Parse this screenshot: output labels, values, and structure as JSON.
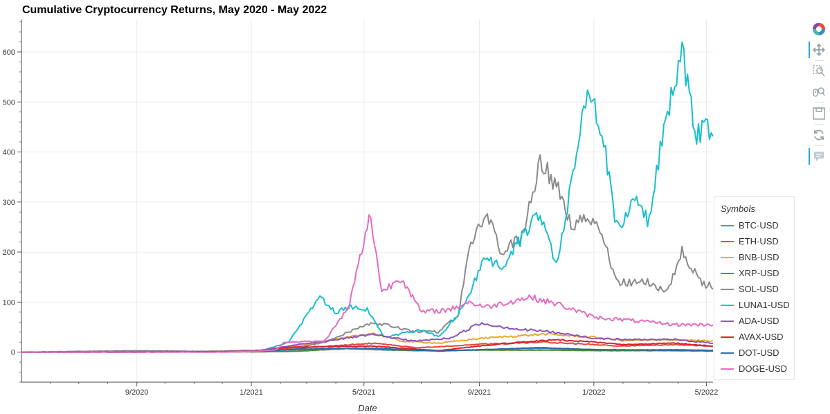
{
  "title": "Cumulative Cryptocurrency Returns, May 2020 - May 2022",
  "toolbar": {
    "tools": [
      {
        "name": "bokeh-logo-icon",
        "active": false
      },
      {
        "name": "pan-icon",
        "active": true
      },
      {
        "name": "box-zoom-icon",
        "active": false
      },
      {
        "name": "wheel-zoom-icon",
        "active": false
      },
      {
        "name": "save-icon",
        "active": false
      },
      {
        "name": "reset-icon",
        "active": false
      },
      {
        "name": "hover-icon",
        "active": true
      }
    ]
  },
  "chart_data": {
    "type": "line",
    "title": "Cumulative Cryptocurrency Returns, May 2020 - May 2022",
    "xlabel": "Date",
    "ylabel": "",
    "xlim": [
      "2020-05-01",
      "2022-05-08"
    ],
    "ylim": [
      -60,
      665
    ],
    "x_ticks": [
      {
        "date": "2020-09-01",
        "label": "9/2020"
      },
      {
        "date": "2021-01-01",
        "label": "1/2021"
      },
      {
        "date": "2021-05-01",
        "label": "5/2021"
      },
      {
        "date": "2021-09-01",
        "label": "9/2021"
      },
      {
        "date": "2022-01-01",
        "label": "1/2022"
      },
      {
        "date": "2022-05-01",
        "label": "5/2022"
      }
    ],
    "y_ticks": [
      0,
      100,
      200,
      300,
      400,
      500,
      600
    ],
    "legend_title": "Symbols",
    "legend_position": "right",
    "grid": true,
    "series": [
      {
        "name": "BTC-USD",
        "color": "#1f77b4",
        "points": [
          [
            "2020-05-01",
            0
          ],
          [
            "2020-09-01",
            0.2
          ],
          [
            "2020-12-01",
            1
          ],
          [
            "2021-01-10",
            3
          ],
          [
            "2021-02-20",
            5
          ],
          [
            "2021-04-14",
            7
          ],
          [
            "2021-05-25",
            4
          ],
          [
            "2021-07-20",
            3
          ],
          [
            "2021-09-05",
            5
          ],
          [
            "2021-10-20",
            7
          ],
          [
            "2021-11-10",
            7.5
          ],
          [
            "2022-01-01",
            5
          ],
          [
            "2022-02-01",
            4
          ],
          [
            "2022-03-28",
            5
          ],
          [
            "2022-05-08",
            3.5
          ]
        ]
      },
      {
        "name": "ETH-USD",
        "color": "#ff7f0e",
        "points": [
          [
            "2020-05-01",
            0
          ],
          [
            "2020-09-01",
            1
          ],
          [
            "2020-12-01",
            2
          ],
          [
            "2021-01-10",
            4
          ],
          [
            "2021-02-20",
            8
          ],
          [
            "2021-05-12",
            18
          ],
          [
            "2021-06-25",
            9
          ],
          [
            "2021-08-01",
            12
          ],
          [
            "2021-09-05",
            16
          ],
          [
            "2021-11-10",
            20
          ],
          [
            "2022-01-01",
            15
          ],
          [
            "2022-02-01",
            12
          ],
          [
            "2022-03-28",
            15
          ],
          [
            "2022-05-08",
            12
          ]
        ]
      },
      {
        "name": "BNB-USD",
        "color": "#2ca02c",
        "points": [
          [
            "2020-05-01",
            0
          ],
          [
            "2020-09-01",
            0.5
          ],
          [
            "2020-12-01",
            1
          ],
          [
            "2021-01-10",
            2
          ],
          [
            "2021-02-20",
            12
          ],
          [
            "2021-05-10",
            38
          ],
          [
            "2021-06-10",
            22
          ],
          [
            "2021-07-20",
            18
          ],
          [
            "2021-09-05",
            28
          ],
          [
            "2021-11-10",
            36
          ],
          [
            "2022-01-01",
            30
          ],
          [
            "2022-02-01",
            23
          ],
          [
            "2022-03-28",
            25
          ],
          [
            "2022-05-08",
            22
          ]
        ]
      },
      {
        "name": "XRP-USD",
        "color": "#d62728",
        "points": [
          [
            "2020-05-01",
            0
          ],
          [
            "2020-09-01",
            0.5
          ],
          [
            "2020-12-01",
            1
          ],
          [
            "2021-01-10",
            0.5
          ],
          [
            "2021-02-20",
            2
          ],
          [
            "2021-04-14",
            7
          ],
          [
            "2021-06-25",
            3
          ],
          [
            "2021-09-05",
            4
          ],
          [
            "2021-11-10",
            4
          ],
          [
            "2022-01-01",
            3
          ],
          [
            "2022-03-28",
            3
          ],
          [
            "2022-05-08",
            2
          ]
        ]
      },
      {
        "name": "SOL-USD",
        "color": "#9467bd",
        "points": [
          [
            "2020-05-01",
            0
          ],
          [
            "2020-09-01",
            3
          ],
          [
            "2020-12-01",
            1
          ],
          [
            "2021-01-10",
            2
          ],
          [
            "2021-02-10",
            5
          ],
          [
            "2021-03-20",
            20
          ],
          [
            "2021-05-10",
            60
          ],
          [
            "2021-06-20",
            42
          ],
          [
            "2021-07-20",
            40
          ],
          [
            "2021-08-10",
            75
          ],
          [
            "2021-08-20",
            200
          ],
          [
            "2021-09-08",
            280
          ],
          [
            "2021-09-25",
            200
          ],
          [
            "2021-10-15",
            225
          ],
          [
            "2021-11-05",
            385
          ],
          [
            "2021-11-25",
            320
          ],
          [
            "2021-12-10",
            250
          ],
          [
            "2021-12-25",
            275
          ],
          [
            "2022-01-10",
            230
          ],
          [
            "2022-01-25",
            140
          ],
          [
            "2022-03-01",
            140
          ],
          [
            "2022-03-20",
            120
          ],
          [
            "2022-04-05",
            200
          ],
          [
            "2022-04-25",
            140
          ],
          [
            "2022-05-08",
            130
          ]
        ]
      },
      {
        "name": "LUNA1-USD",
        "color": "#8c564b",
        "points": [
          [
            "2020-05-01",
            0
          ],
          [
            "2020-09-01",
            1
          ],
          [
            "2020-12-01",
            1
          ],
          [
            "2021-01-10",
            2
          ],
          [
            "2021-02-10",
            20
          ],
          [
            "2021-03-15",
            110
          ],
          [
            "2021-04-01",
            80
          ],
          [
            "2021-04-14",
            90
          ],
          [
            "2021-05-05",
            85
          ],
          [
            "2021-05-23",
            30
          ],
          [
            "2021-07-01",
            45
          ],
          [
            "2021-07-20",
            30
          ],
          [
            "2021-08-15",
            90
          ],
          [
            "2021-09-08",
            190
          ],
          [
            "2021-09-25",
            170
          ],
          [
            "2021-11-05",
            280
          ],
          [
            "2021-11-22",
            175
          ],
          [
            "2021-12-25",
            515
          ],
          [
            "2022-01-10",
            450
          ],
          [
            "2022-01-25",
            250
          ],
          [
            "2022-02-15",
            300
          ],
          [
            "2022-03-01",
            260
          ],
          [
            "2022-03-15",
            430
          ],
          [
            "2022-04-05",
            605
          ],
          [
            "2022-04-20",
            440
          ],
          [
            "2022-05-08",
            445
          ]
        ]
      },
      {
        "name": "ADA-USD",
        "color": "#e377c2",
        "points": [
          [
            "2020-05-01",
            0
          ],
          [
            "2020-09-01",
            1
          ],
          [
            "2020-12-01",
            1
          ],
          [
            "2021-01-10",
            3
          ],
          [
            "2021-02-20",
            15
          ],
          [
            "2021-05-10",
            35
          ],
          [
            "2021-06-25",
            22
          ],
          [
            "2021-08-01",
            28
          ],
          [
            "2021-09-02",
            58
          ],
          [
            "2021-10-15",
            45
          ],
          [
            "2021-11-10",
            42
          ],
          [
            "2022-01-01",
            28
          ],
          [
            "2022-02-01",
            25
          ],
          [
            "2022-03-28",
            25
          ],
          [
            "2022-05-08",
            18
          ]
        ]
      },
      {
        "name": "AVAX-USD",
        "color": "#7f7f7f",
        "points": [
          [
            "2020-05-01",
            0
          ],
          [
            "2020-09-20",
            0
          ],
          [
            "2021-01-10",
            1
          ],
          [
            "2021-02-10",
            10
          ],
          [
            "2021-05-10",
            12
          ],
          [
            "2021-07-20",
            3
          ],
          [
            "2021-09-15",
            15
          ],
          [
            "2021-11-20",
            25
          ],
          [
            "2022-01-01",
            20
          ],
          [
            "2022-02-01",
            15
          ],
          [
            "2022-03-28",
            18
          ],
          [
            "2022-05-08",
            12
          ]
        ]
      },
      {
        "name": "DOT-USD",
        "color": "#bcbd22",
        "points": [
          [
            "2020-05-01",
            0
          ],
          [
            "2020-08-20",
            0
          ],
          [
            "2020-12-01",
            1
          ],
          [
            "2021-01-10",
            2
          ],
          [
            "2021-02-20",
            6
          ],
          [
            "2021-05-10",
            8
          ],
          [
            "2021-07-20",
            2
          ],
          [
            "2021-09-05",
            5
          ],
          [
            "2021-11-05",
            9
          ],
          [
            "2022-01-01",
            5
          ],
          [
            "2022-03-28",
            4
          ],
          [
            "2022-05-08",
            3
          ]
        ]
      },
      {
        "name": "DOGE-USD",
        "color": "#17becf",
        "points": [
          [
            "2020-05-01",
            0
          ],
          [
            "2020-12-01",
            0
          ],
          [
            "2021-01-10",
            2
          ],
          [
            "2021-01-28",
            5
          ],
          [
            "2021-02-05",
            20
          ],
          [
            "2021-03-20",
            22
          ],
          [
            "2021-04-15",
            90
          ],
          [
            "2021-04-22",
            150
          ],
          [
            "2021-05-08",
            275
          ],
          [
            "2021-05-20",
            120
          ],
          [
            "2021-06-10",
            150
          ],
          [
            "2021-07-01",
            80
          ],
          [
            "2021-08-01",
            85
          ],
          [
            "2021-08-20",
            100
          ],
          [
            "2021-09-08",
            90
          ],
          [
            "2021-10-25",
            110
          ],
          [
            "2021-11-25",
            95
          ],
          [
            "2022-01-01",
            70
          ],
          [
            "2022-03-01",
            60
          ],
          [
            "2022-03-28",
            55
          ],
          [
            "2022-05-08",
            55
          ]
        ]
      }
    ]
  },
  "legend_colors": [
    "#4c93c4",
    "#ef4b3d",
    "#e9ad35",
    "#5a8f3a",
    "#8c8c8c",
    "#1fbecf",
    "#8d59b8",
    "#d62728",
    "#2f6fa9",
    "#e46fc0"
  ],
  "series_colors": [
    "#3a8fc9",
    "#e8453a",
    "#e7a82e",
    "#4f8c36",
    "#8a8a8a",
    "#17becf",
    "#8b52b8",
    "#d6202b",
    "#2b6aa7",
    "#e36cc2"
  ]
}
